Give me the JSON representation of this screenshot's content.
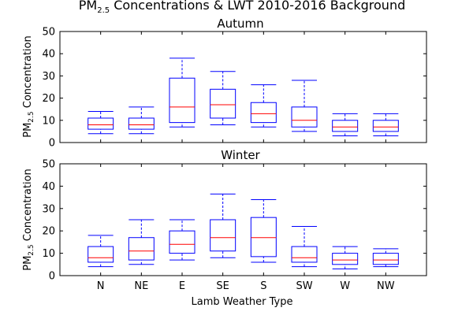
{
  "figure": {
    "title_main": "PM",
    "title_sub": "2.5",
    "title_rest": " Concentrations & LWT 2010-2016 Background",
    "xlabel": "Lamb Weather Type",
    "ylabel_main": "PM",
    "ylabel_sub": "2.5",
    "ylabel_rest": " Concentration"
  },
  "style": {
    "box_color": "#0000ff",
    "median_color": "#ff0000",
    "axis_color": "#000000"
  },
  "chart_data": [
    {
      "type": "boxplot",
      "title": "Autumn",
      "categories": [
        "N",
        "NE",
        "E",
        "SE",
        "S",
        "SW",
        "W",
        "NW"
      ],
      "ylim": [
        0,
        50
      ],
      "yticks": [
        0,
        10,
        20,
        30,
        40,
        50
      ],
      "grid": false,
      "boxes": [
        {
          "whislo": 4,
          "q1": 6,
          "med": 8,
          "q3": 11,
          "whishi": 14
        },
        {
          "whislo": 4,
          "q1": 6,
          "med": 8,
          "q3": 11,
          "whishi": 16
        },
        {
          "whislo": 7,
          "q1": 9,
          "med": 16,
          "q3": 29,
          "whishi": 38
        },
        {
          "whislo": 8,
          "q1": 11,
          "med": 17,
          "q3": 24,
          "whishi": 32
        },
        {
          "whislo": 7,
          "q1": 9,
          "med": 13,
          "q3": 18,
          "whishi": 26
        },
        {
          "whislo": 5,
          "q1": 7,
          "med": 10,
          "q3": 16,
          "whishi": 28
        },
        {
          "whislo": 3,
          "q1": 5,
          "med": 7,
          "q3": 10,
          "whishi": 13
        },
        {
          "whislo": 3,
          "q1": 5,
          "med": 7,
          "q3": 10,
          "whishi": 13
        }
      ]
    },
    {
      "type": "boxplot",
      "title": "Winter",
      "categories": [
        "N",
        "NE",
        "E",
        "SE",
        "S",
        "SW",
        "W",
        "NW"
      ],
      "ylim": [
        0,
        50
      ],
      "yticks": [
        0,
        10,
        20,
        30,
        40,
        50
      ],
      "grid": false,
      "boxes": [
        {
          "whislo": 4,
          "q1": 6,
          "med": 8,
          "q3": 13,
          "whishi": 18
        },
        {
          "whislo": 5,
          "q1": 7,
          "med": 11,
          "q3": 17,
          "whishi": 25
        },
        {
          "whislo": 7,
          "q1": 10,
          "med": 14,
          "q3": 20,
          "whishi": 25
        },
        {
          "whislo": 8,
          "q1": 11,
          "med": 17,
          "q3": 25,
          "whishi": 36.5
        },
        {
          "whislo": 6,
          "q1": 8.5,
          "med": 17,
          "q3": 26,
          "whishi": 34
        },
        {
          "whislo": 4,
          "q1": 6,
          "med": 8,
          "q3": 13,
          "whishi": 22
        },
        {
          "whislo": 3,
          "q1": 5,
          "med": 7,
          "q3": 10,
          "whishi": 13
        },
        {
          "whislo": 4,
          "q1": 5,
          "med": 7,
          "q3": 10,
          "whishi": 12
        }
      ]
    }
  ]
}
